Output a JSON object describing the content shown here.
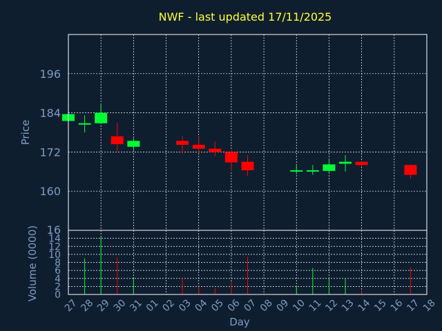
{
  "chart_data": [
    {
      "type": "candlestick",
      "title": "NWF - last updated 17/11/2025",
      "ylabel": "Price",
      "ylim": [
        148,
        208
      ],
      "y_ticks": [
        160,
        172,
        184,
        196
      ],
      "grid": true,
      "colors": {
        "up": "#00ff33",
        "down": "#ff0000",
        "grid": "#ffffff",
        "background": "#0f1e2f",
        "frame": "#ffffff"
      },
      "x_domain": [
        27,
        49
      ],
      "candles": [
        {
          "day": 27,
          "open": 181.5,
          "high": 184.2,
          "low": 181.0,
          "close": 183.6
        },
        {
          "day": 28,
          "open": 180.5,
          "high": 183.2,
          "low": 178.0,
          "close": 180.8
        },
        {
          "day": 29,
          "open": 180.8,
          "high": 186.8,
          "low": 180.6,
          "close": 184.0
        },
        {
          "day": 30,
          "open": 176.8,
          "high": 180.8,
          "low": 172.2,
          "close": 174.4
        },
        {
          "day": 31,
          "open": 173.6,
          "high": 176.2,
          "low": 172.6,
          "close": 175.4
        },
        {
          "day": 34,
          "open": 175.4,
          "high": 176.8,
          "low": 171.6,
          "close": 174.2
        },
        {
          "day": 35,
          "open": 174.2,
          "high": 176.6,
          "low": 171.6,
          "close": 173.0
        },
        {
          "day": 36,
          "open": 173.0,
          "high": 175.2,
          "low": 170.8,
          "close": 172.0
        },
        {
          "day": 37,
          "open": 172.0,
          "high": 172.6,
          "low": 166.2,
          "close": 168.8
        },
        {
          "day": 38,
          "open": 169.0,
          "high": 171.0,
          "low": 164.6,
          "close": 166.4
        },
        {
          "day": 41,
          "open": 166.2,
          "high": 167.8,
          "low": 165.2,
          "close": 166.4
        },
        {
          "day": 42,
          "open": 166.0,
          "high": 168.0,
          "low": 165.0,
          "close": 166.4
        },
        {
          "day": 43,
          "open": 166.2,
          "high": 169.8,
          "low": 165.6,
          "close": 168.2
        },
        {
          "day": 44,
          "open": 168.4,
          "high": 171.0,
          "low": 166.0,
          "close": 169.0
        },
        {
          "day": 45,
          "open": 169.0,
          "high": 169.2,
          "low": 167.4,
          "close": 168.0
        },
        {
          "day": 48,
          "open": 168.0,
          "high": 168.2,
          "low": 163.8,
          "close": 165.0
        }
      ]
    },
    {
      "type": "bar",
      "ylabel": "Volume (0000)",
      "xlabel": "Day",
      "ylim": [
        0,
        16
      ],
      "y_ticks": [
        0,
        2,
        4,
        6,
        8,
        10,
        12,
        14,
        16
      ],
      "categories": [
        "27",
        "28",
        "29",
        "30",
        "31",
        "01",
        "02",
        "03",
        "04",
        "05",
        "06",
        "07",
        "08",
        "09",
        "10",
        "11",
        "12",
        "13",
        "14",
        "15",
        "16",
        "17",
        "18"
      ],
      "x_domain": [
        27,
        49
      ],
      "bars": [
        {
          "day": 27,
          "value": 6.0,
          "color": "#00ff33"
        },
        {
          "day": 28,
          "value": 9.0,
          "color": "#00ff33"
        },
        {
          "day": 29,
          "value": 14.4,
          "color": "#00ff33"
        },
        {
          "day": 30,
          "value": 9.2,
          "color": "#ff0000"
        },
        {
          "day": 31,
          "value": 4.0,
          "color": "#00ff33"
        },
        {
          "day": 34,
          "value": 4.2,
          "color": "#ff0000"
        },
        {
          "day": 35,
          "value": 2.0,
          "color": "#ff0000"
        },
        {
          "day": 36,
          "value": 1.6,
          "color": "#ff0000"
        },
        {
          "day": 37,
          "value": 3.2,
          "color": "#ff0000"
        },
        {
          "day": 38,
          "value": 9.4,
          "color": "#ff0000"
        },
        {
          "day": 41,
          "value": 2.2,
          "color": "#00ff33"
        },
        {
          "day": 42,
          "value": 6.6,
          "color": "#00ff33"
        },
        {
          "day": 43,
          "value": 4.0,
          "color": "#00ff33"
        },
        {
          "day": 44,
          "value": 4.0,
          "color": "#00ff33"
        },
        {
          "day": 45,
          "value": 1.0,
          "color": "#ff0000"
        },
        {
          "day": 48,
          "value": 6.8,
          "color": "#ff0000"
        }
      ]
    }
  ]
}
